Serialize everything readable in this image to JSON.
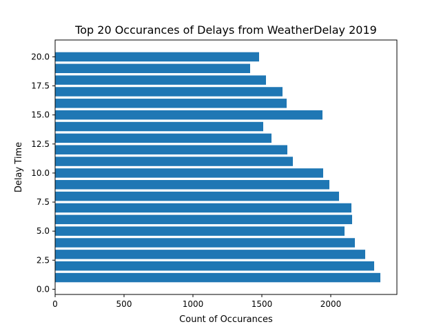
{
  "chart_data": {
    "type": "bar",
    "orientation": "horizontal",
    "title": "Top 20 Occurances of Delays from WeatherDelay 2019",
    "xlabel": "Count of Occurances",
    "ylabel": "Delay Time",
    "categories": [
      1,
      2,
      3,
      4,
      5,
      6,
      7,
      8,
      9,
      10,
      11,
      12,
      13,
      14,
      15,
      16,
      17,
      18,
      19,
      20
    ],
    "values": [
      2360,
      2315,
      2250,
      2175,
      2100,
      2155,
      2150,
      2060,
      1990,
      1945,
      1725,
      1685,
      1570,
      1510,
      1940,
      1680,
      1650,
      1530,
      1415,
      1480
    ],
    "xlim": [
      0,
      2480
    ],
    "ylim": [
      -0.45,
      21.45
    ],
    "xticks": [
      0,
      500,
      1000,
      1500,
      2000
    ],
    "xtick_labels": [
      "0",
      "500",
      "1000",
      "1500",
      "2000"
    ],
    "yticks": [
      0,
      2.5,
      5,
      7.5,
      10,
      12.5,
      15,
      17.5,
      20
    ],
    "ytick_labels": [
      "0.0",
      "2.5",
      "5.0",
      "7.5",
      "10.0",
      "12.5",
      "15.0",
      "17.5",
      "20.0"
    ],
    "bar_color": "#1f77b4",
    "grid": false,
    "legend": "none"
  }
}
